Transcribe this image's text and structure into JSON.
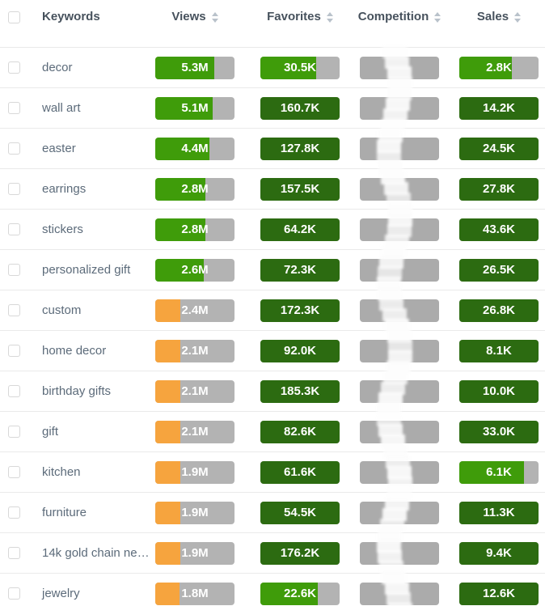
{
  "header": {
    "columns": [
      {
        "id": "keywords",
        "label": "Keywords",
        "sortable": false
      },
      {
        "id": "views",
        "label": "Views",
        "sortable": true
      },
      {
        "id": "favorites",
        "label": "Favorites",
        "sortable": true
      },
      {
        "id": "competition",
        "label": "Competition",
        "sortable": true
      },
      {
        "id": "sales",
        "label": "Sales",
        "sortable": true
      }
    ]
  },
  "rows": [
    {
      "keyword": "decor",
      "views": {
        "value": "5.3M",
        "fill": 74,
        "level": "bright"
      },
      "favorites": {
        "value": "30.5K",
        "fill": 70,
        "level": "bright"
      },
      "competition": {
        "value": "",
        "fill": 0,
        "level": "none",
        "obscured": true
      },
      "sales": {
        "value": "2.8K",
        "fill": 66,
        "level": "bright"
      }
    },
    {
      "keyword": "wall art",
      "views": {
        "value": "5.1M",
        "fill": 72,
        "level": "bright"
      },
      "favorites": {
        "value": "160.7K",
        "fill": 100,
        "level": "dark"
      },
      "competition": {
        "value": "",
        "fill": 0,
        "level": "none",
        "obscured": true
      },
      "sales": {
        "value": "14.2K",
        "fill": 100,
        "level": "dark"
      }
    },
    {
      "keyword": "easter",
      "views": {
        "value": "4.4M",
        "fill": 68,
        "level": "bright"
      },
      "favorites": {
        "value": "127.8K",
        "fill": 100,
        "level": "dark"
      },
      "competition": {
        "value": "",
        "fill": 0,
        "level": "none",
        "obscured": true
      },
      "sales": {
        "value": "24.5K",
        "fill": 100,
        "level": "dark"
      }
    },
    {
      "keyword": "earrings",
      "views": {
        "value": "2.8M",
        "fill": 63,
        "level": "bright"
      },
      "favorites": {
        "value": "157.5K",
        "fill": 100,
        "level": "dark"
      },
      "competition": {
        "value": "",
        "fill": 0,
        "level": "none",
        "obscured": true
      },
      "sales": {
        "value": "27.8K",
        "fill": 100,
        "level": "dark"
      }
    },
    {
      "keyword": "stickers",
      "views": {
        "value": "2.8M",
        "fill": 63,
        "level": "bright"
      },
      "favorites": {
        "value": "64.2K",
        "fill": 100,
        "level": "dark"
      },
      "competition": {
        "value": "",
        "fill": 0,
        "level": "none",
        "obscured": true
      },
      "sales": {
        "value": "43.6K",
        "fill": 100,
        "level": "dark"
      }
    },
    {
      "keyword": "personalized gift",
      "views": {
        "value": "2.6M",
        "fill": 61,
        "level": "bright"
      },
      "favorites": {
        "value": "72.3K",
        "fill": 100,
        "level": "dark"
      },
      "competition": {
        "value": "",
        "fill": 0,
        "level": "none",
        "obscured": true
      },
      "sales": {
        "value": "26.5K",
        "fill": 100,
        "level": "dark"
      }
    },
    {
      "keyword": "custom",
      "views": {
        "value": "2.4M",
        "fill": 32,
        "level": "orange"
      },
      "favorites": {
        "value": "172.3K",
        "fill": 100,
        "level": "dark"
      },
      "competition": {
        "value": "",
        "fill": 0,
        "level": "none",
        "obscured": true
      },
      "sales": {
        "value": "26.8K",
        "fill": 100,
        "level": "dark"
      }
    },
    {
      "keyword": "home decor",
      "views": {
        "value": "2.1M",
        "fill": 32,
        "level": "orange"
      },
      "favorites": {
        "value": "92.0K",
        "fill": 100,
        "level": "dark"
      },
      "competition": {
        "value": "",
        "fill": 0,
        "level": "none",
        "obscured": true
      },
      "sales": {
        "value": "8.1K",
        "fill": 100,
        "level": "dark"
      }
    },
    {
      "keyword": "birthday gifts",
      "views": {
        "value": "2.1M",
        "fill": 32,
        "level": "orange"
      },
      "favorites": {
        "value": "185.3K",
        "fill": 100,
        "level": "dark"
      },
      "competition": {
        "value": "",
        "fill": 0,
        "level": "none",
        "obscured": true
      },
      "sales": {
        "value": "10.0K",
        "fill": 100,
        "level": "dark"
      }
    },
    {
      "keyword": "gift",
      "views": {
        "value": "2.1M",
        "fill": 32,
        "level": "orange"
      },
      "favorites": {
        "value": "82.6K",
        "fill": 100,
        "level": "dark"
      },
      "competition": {
        "value": "",
        "fill": 0,
        "level": "none",
        "obscured": true
      },
      "sales": {
        "value": "33.0K",
        "fill": 100,
        "level": "dark"
      }
    },
    {
      "keyword": "kitchen",
      "views": {
        "value": "1.9M",
        "fill": 32,
        "level": "orange"
      },
      "favorites": {
        "value": "61.6K",
        "fill": 100,
        "level": "dark"
      },
      "competition": {
        "value": "",
        "fill": 0,
        "level": "none",
        "obscured": true
      },
      "sales": {
        "value": "6.1K",
        "fill": 82,
        "level": "bright"
      }
    },
    {
      "keyword": "furniture",
      "views": {
        "value": "1.9M",
        "fill": 32,
        "level": "orange"
      },
      "favorites": {
        "value": "54.5K",
        "fill": 100,
        "level": "dark"
      },
      "competition": {
        "value": "",
        "fill": 0,
        "level": "none",
        "obscured": true
      },
      "sales": {
        "value": "11.3K",
        "fill": 100,
        "level": "dark"
      }
    },
    {
      "keyword": "14k gold chain ne…",
      "views": {
        "value": "1.9M",
        "fill": 32,
        "level": "orange"
      },
      "favorites": {
        "value": "176.2K",
        "fill": 100,
        "level": "dark"
      },
      "competition": {
        "value": "",
        "fill": 0,
        "level": "none",
        "obscured": true
      },
      "sales": {
        "value": "9.4K",
        "fill": 100,
        "level": "dark"
      }
    },
    {
      "keyword": "jewelry",
      "views": {
        "value": "1.8M",
        "fill": 31,
        "level": "orange"
      },
      "favorites": {
        "value": "22.6K",
        "fill": 72,
        "level": "bright"
      },
      "competition": {
        "value": "",
        "fill": 0,
        "level": "none",
        "obscured": true
      },
      "sales": {
        "value": "12.6K",
        "fill": 100,
        "level": "dark"
      }
    }
  ],
  "colors": {
    "bright_green": "#3f9c0a",
    "dark_green": "#2c6b11",
    "orange": "#f6a43e",
    "bar_track_gray": "#b3b3b3",
    "competition_gray": "#ababab"
  }
}
